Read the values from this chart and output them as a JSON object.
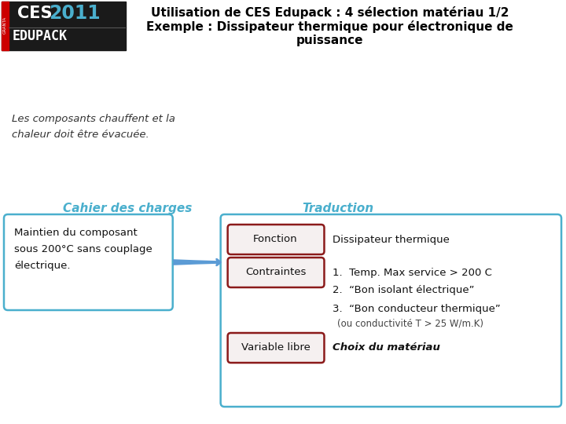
{
  "title_line1": "Utilisation de CES Edupack : 4 sélection matériau 1/2",
  "title_line2": "Exemple : Dissipateur thermique pour électronique de",
  "title_line3": "puissance",
  "italic_text": "Les composants chauffent et la\nchaleur doit être évacuée.",
  "section_left": "Cahier des charges",
  "section_right": "Traduction",
  "left_box_text": "Maintien du composant\nsous 200°C sans couplage\nélectrique.",
  "fonction_label": "Fonction",
  "contraintes_label": "Contraintes",
  "variable_label": "Variable libre",
  "fonction_value": "Dissipateur thermique",
  "contrainte1": "1.  Temp. Max service > 200 C",
  "contrainte2": "2.  “Bon isolant électrique”",
  "contrainte3": "3.  “Bon conducteur thermique”",
  "contrainte4": "(ou conductivité T > 25 W/m.K)",
  "variable_value": "Choix du matériau",
  "bg_color": "#ffffff",
  "title_color": "#000000",
  "section_color": "#4AAFCD",
  "left_box_border": "#4AAFCD",
  "right_box_border": "#4AAFCD",
  "red_box_border": "#8B1A1A",
  "arrow_color": "#5B9BD5",
  "logo_bg": "#1a1a1a",
  "logo_red": "#CC0000",
  "logo_ces": "#ffffff",
  "logo_year": "#4AAFCD",
  "logo_edu": "#ffffff"
}
